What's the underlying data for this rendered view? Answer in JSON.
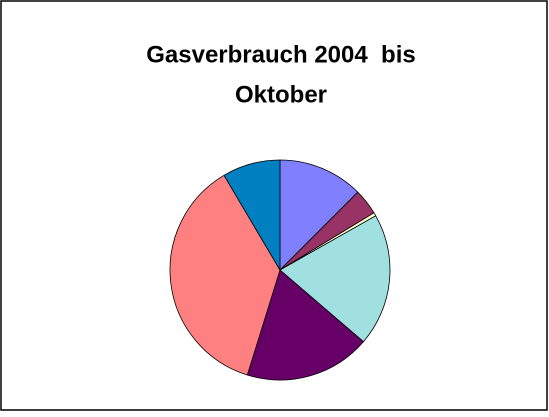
{
  "chart_data": {
    "type": "pie",
    "title_lines": [
      "Gasverbrauch 2004  bis",
      "Oktober"
    ],
    "values": [
      12.5,
      3.8,
      0.5,
      19.5,
      18.5,
      36.7,
      8.5
    ],
    "colors": [
      "#8080ff",
      "#993366",
      "#ffffcc",
      "#a0e0e0",
      "#660066",
      "#ff8080",
      "#0080c0"
    ],
    "start_angle": 0,
    "direction": "clockwise"
  }
}
